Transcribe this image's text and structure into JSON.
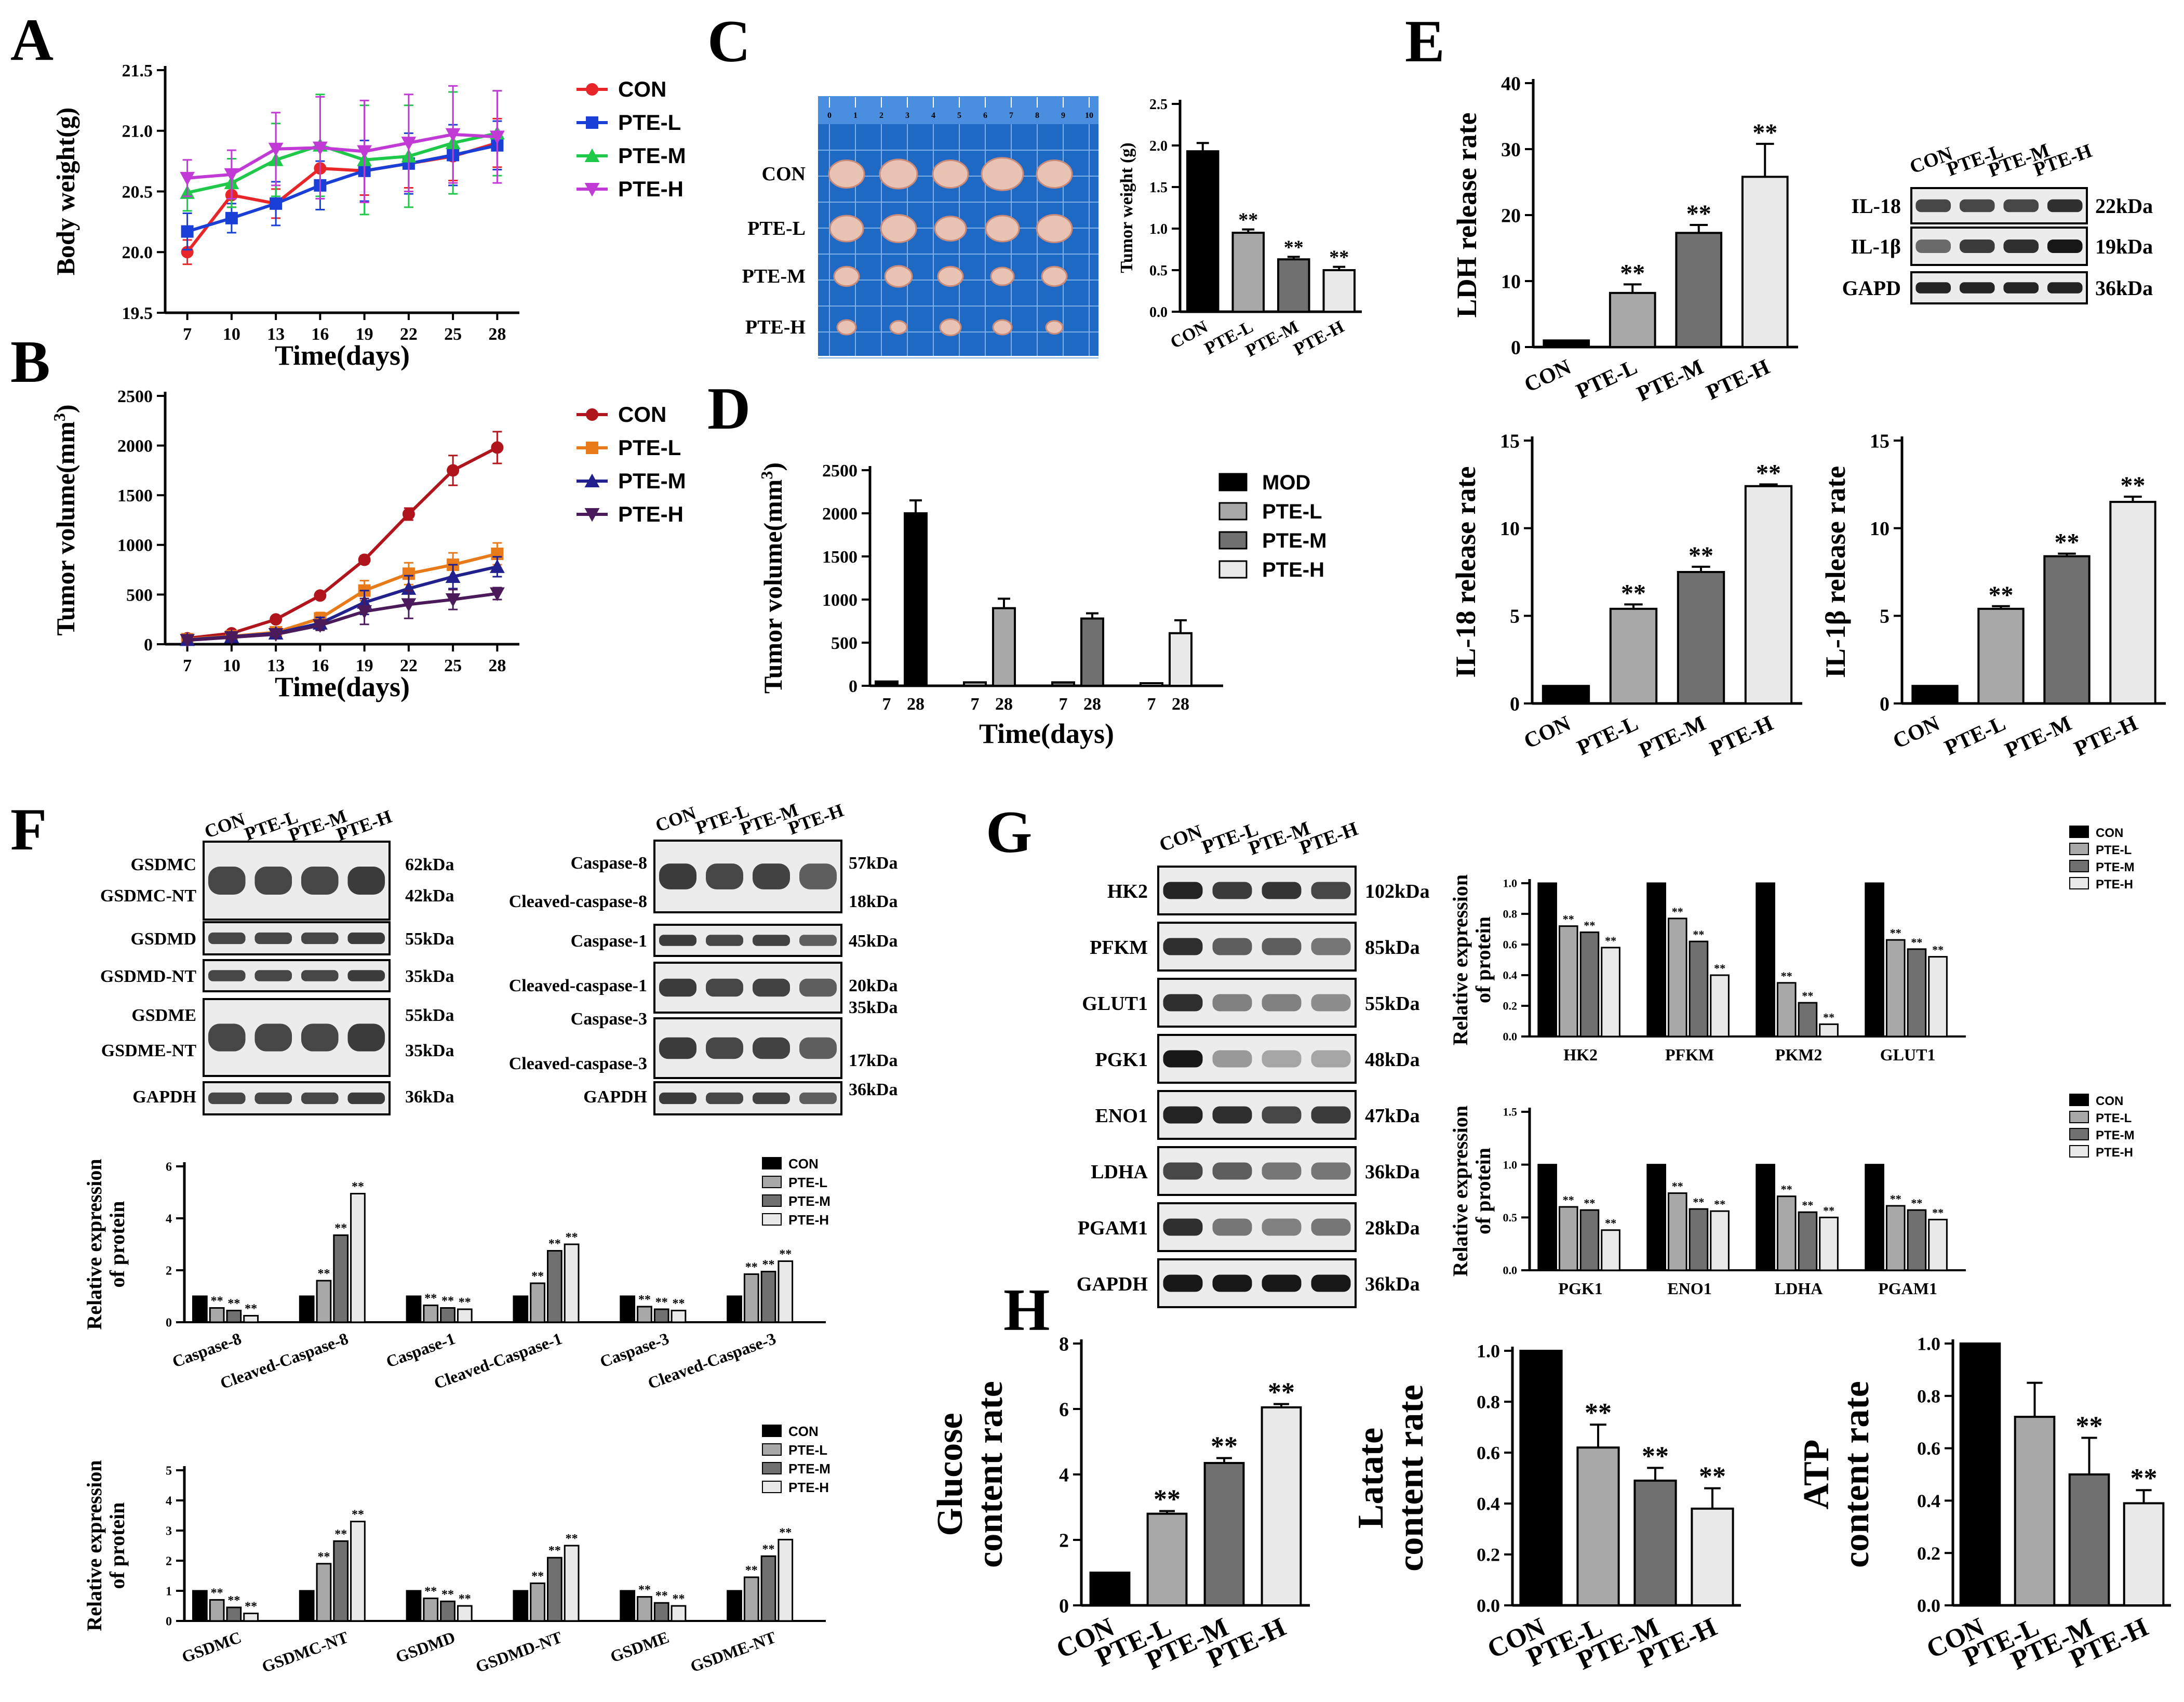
{
  "figure": {
    "panel_labels": [
      "A",
      "B",
      "C",
      "D",
      "E",
      "F",
      "G",
      "H"
    ]
  },
  "chart_data": [
    {
      "id": "A",
      "type": "line",
      "ylabel": "Body weight(g)",
      "xlabel": "Time(days)",
      "x": [
        7,
        10,
        13,
        16,
        19,
        22,
        25,
        28
      ],
      "ylim": [
        19.5,
        21.5
      ],
      "yticks": [
        19.5,
        20.0,
        20.5,
        21.0,
        21.5
      ],
      "series": [
        {
          "name": "CON",
          "color": "#e8262a",
          "marker": "circle",
          "values": [
            20.0,
            20.47,
            20.4,
            20.69,
            20.67,
            20.73,
            20.79,
            20.9
          ],
          "err": [
            0.1,
            0.1,
            0.12,
            0.15,
            0.2,
            0.2,
            0.2,
            0.2
          ]
        },
        {
          "name": "PTE-L",
          "color": "#1a3fd6",
          "marker": "square",
          "values": [
            20.17,
            20.28,
            20.4,
            20.55,
            20.67,
            20.73,
            20.8,
            20.88
          ],
          "err": [
            0.15,
            0.12,
            0.18,
            0.2,
            0.25,
            0.25,
            0.25,
            0.2
          ]
        },
        {
          "name": "PTE-M",
          "color": "#1ec94a",
          "marker": "triangle",
          "values": [
            20.49,
            20.57,
            20.76,
            20.88,
            20.76,
            20.79,
            20.9,
            20.98
          ],
          "err": [
            0.15,
            0.2,
            0.3,
            0.42,
            0.45,
            0.42,
            0.42,
            0.35
          ]
        },
        {
          "name": "PTE-H",
          "color": "#c23ad6",
          "marker": "tri-down",
          "values": [
            20.61,
            20.64,
            20.85,
            20.86,
            20.83,
            20.9,
            20.97,
            20.95
          ],
          "err": [
            0.15,
            0.2,
            0.3,
            0.42,
            0.42,
            0.4,
            0.4,
            0.38
          ]
        }
      ]
    },
    {
      "id": "B",
      "type": "line",
      "ylabel": "Tumor volume(mm",
      "ylabel_sup": "3",
      "ylabel_end": ")",
      "xlabel": "Time(days)",
      "x": [
        7,
        10,
        13,
        16,
        19,
        22,
        25,
        28
      ],
      "ylim": [
        0,
        2500
      ],
      "yticks": [
        0,
        500,
        1000,
        1500,
        2000,
        2500
      ],
      "series": [
        {
          "name": "CON",
          "color": "#b0141c",
          "marker": "circle",
          "values": [
            60,
            110,
            250,
            490,
            850,
            1310,
            1750,
            1980
          ],
          "err": [
            10,
            15,
            20,
            25,
            40,
            60,
            150,
            160
          ]
        },
        {
          "name": "PTE-L",
          "color": "#e87a1a",
          "marker": "square",
          "values": [
            50,
            80,
            120,
            260,
            540,
            710,
            800,
            910
          ],
          "err": [
            10,
            15,
            30,
            60,
            100,
            110,
            120,
            110
          ]
        },
        {
          "name": "PTE-M",
          "color": "#21208c",
          "marker": "triangle",
          "values": [
            45,
            75,
            110,
            210,
            420,
            560,
            680,
            780
          ],
          "err": [
            10,
            15,
            30,
            60,
            120,
            130,
            120,
            100
          ]
        },
        {
          "name": "PTE-H",
          "color": "#4b1a5a",
          "marker": "tri-down",
          "values": [
            40,
            70,
            100,
            190,
            330,
            400,
            450,
            510
          ],
          "err": [
            10,
            15,
            25,
            50,
            130,
            140,
            100,
            60
          ]
        }
      ]
    },
    {
      "id": "C-bar",
      "type": "bar",
      "ylabel": "Tumor weight (g)",
      "categories": [
        "CON",
        "PTE-L",
        "PTE-M",
        "PTE-H"
      ],
      "values": [
        1.93,
        0.95,
        0.63,
        0.5
      ],
      "err": [
        0.1,
        0.04,
        0.03,
        0.04
      ],
      "sig": [
        "",
        "**",
        "**",
        "**"
      ],
      "ylim": [
        0,
        2.5
      ],
      "yticks": [
        "0.0",
        "0.5",
        "1.0",
        "1.5",
        "2.0",
        "2.5"
      ]
    },
    {
      "id": "D",
      "type": "bar",
      "ylabel": "Tumor volume(mm",
      "ylabel_sup": "3",
      "ylabel_end": ")",
      "xlabel": "Time(days)",
      "groups": [
        "MOD",
        "PTE-L",
        "PTE-M",
        "PTE-H"
      ],
      "xticks": [
        "7",
        "28",
        "7",
        "28",
        "7",
        "28",
        "7",
        "28"
      ],
      "values": [
        50,
        2000,
        40,
        900,
        40,
        780,
        30,
        610
      ],
      "err": [
        0,
        150,
        0,
        110,
        0,
        60,
        0,
        150
      ],
      "ylim": [
        0,
        2500
      ],
      "yticks": [
        0,
        500,
        1000,
        1500,
        2000,
        2500
      ]
    },
    {
      "id": "E-LDH",
      "type": "bar",
      "ylabel": "LDH release rate",
      "categories": [
        "CON",
        "PTE-L",
        "PTE-M",
        "PTE-H"
      ],
      "values": [
        1,
        8.2,
        17.3,
        25.8
      ],
      "err": [
        0,
        1.3,
        1.2,
        5
      ],
      "sig": [
        "",
        "**",
        "**",
        "**"
      ],
      "ylim": [
        0,
        40
      ],
      "yticks": [
        0,
        10,
        20,
        30,
        40
      ]
    },
    {
      "id": "E-IL18",
      "type": "bar",
      "ylabel": "IL-18 release rate",
      "categories": [
        "CON",
        "PTE-L",
        "PTE-M",
        "PTE-H"
      ],
      "values": [
        1,
        5.4,
        7.5,
        12.4
      ],
      "err": [
        0,
        0.25,
        0.3,
        0.1
      ],
      "sig": [
        "",
        "**",
        "**",
        "**"
      ],
      "ylim": [
        0,
        15
      ],
      "yticks": [
        0,
        5,
        10,
        15
      ]
    },
    {
      "id": "E-IL1b",
      "type": "bar",
      "ylabel": "IL-1β release rate",
      "categories": [
        "CON",
        "PTE-L",
        "PTE-M",
        "PTE-H"
      ],
      "values": [
        1,
        5.4,
        8.4,
        11.5
      ],
      "err": [
        0,
        0.15,
        0.15,
        0.3
      ],
      "sig": [
        "",
        "**",
        "**",
        "**"
      ],
      "ylim": [
        0,
        15
      ],
      "yticks": [
        0,
        5,
        10,
        15
      ]
    },
    {
      "id": "F-caspase",
      "type": "bar",
      "ylabel": "Relative expression",
      "ylabel2": "of protein",
      "legend": [
        "CON",
        "PTE-L",
        "PTE-M",
        "PTE-H"
      ],
      "categories": [
        "Caspase-8",
        "Cleaved-Caspase-8",
        "Caspase-1",
        "Cleaved-Caspase-1",
        "Caspase-3",
        "Cleaved-Caspase-3"
      ],
      "series_values": [
        [
          1,
          0.55,
          0.45,
          0.25
        ],
        [
          1,
          1.6,
          3.35,
          4.95
        ],
        [
          1,
          0.65,
          0.55,
          0.5
        ],
        [
          1,
          1.5,
          2.75,
          3.0
        ],
        [
          1,
          0.6,
          0.5,
          0.45
        ],
        [
          1,
          1.85,
          1.95,
          2.35
        ]
      ],
      "ylim": [
        0,
        6
      ],
      "yticks": [
        0,
        2,
        4,
        6
      ]
    },
    {
      "id": "F-gsdm",
      "type": "bar",
      "ylabel": "Relative expression",
      "ylabel2": "of protein",
      "legend": [
        "CON",
        "PTE-L",
        "PTE-M",
        "PTE-H"
      ],
      "categories": [
        "GSDMC",
        "GSDMC-NT",
        "GSDMD",
        "GSDMD-NT",
        "GSDME",
        "GSDME-NT"
      ],
      "series_values": [
        [
          1,
          0.7,
          0.45,
          0.25
        ],
        [
          1,
          1.9,
          2.65,
          3.3
        ],
        [
          1,
          0.75,
          0.65,
          0.5
        ],
        [
          1,
          1.25,
          2.1,
          2.5
        ],
        [
          1,
          0.8,
          0.6,
          0.5
        ],
        [
          1,
          1.45,
          2.15,
          2.7
        ]
      ],
      "ylim": [
        0,
        5
      ],
      "yticks": [
        0,
        1,
        2,
        3,
        4,
        5
      ]
    },
    {
      "id": "G-1",
      "type": "bar",
      "ylabel": "Relative expression",
      "ylabel2": "of protein",
      "legend": [
        "CON",
        "PTE-L",
        "PTE-M",
        "PTE-H"
      ],
      "categories": [
        "HK2",
        "PFKM",
        "PKM2",
        "GLUT1"
      ],
      "series_values": [
        [
          1,
          0.72,
          0.68,
          0.58
        ],
        [
          1,
          0.77,
          0.62,
          0.4
        ],
        [
          1,
          0.35,
          0.22,
          0.08
        ],
        [
          1,
          0.63,
          0.57,
          0.52
        ]
      ],
      "ylim": [
        0,
        1.0
      ],
      "yticks": [
        "0.0",
        "0.2",
        "0.4",
        "0.6",
        "0.8",
        "1.0"
      ]
    },
    {
      "id": "G-2",
      "type": "bar",
      "ylabel": "Relative expression",
      "ylabel2": "of protein",
      "legend": [
        "CON",
        "PTE-L",
        "PTE-M",
        "PTE-H"
      ],
      "categories": [
        "PGK1",
        "ENO1",
        "LDHA",
        "PGAM1"
      ],
      "series_values": [
        [
          1,
          0.6,
          0.57,
          0.38
        ],
        [
          1,
          0.73,
          0.58,
          0.56
        ],
        [
          1,
          0.7,
          0.55,
          0.5
        ],
        [
          1,
          0.61,
          0.57,
          0.48
        ]
      ],
      "ylim": [
        0,
        1.5
      ],
      "yticks": [
        "0.0",
        "0.5",
        "1.0",
        "1.5"
      ]
    },
    {
      "id": "H-glucose",
      "type": "bar",
      "ylabel": "Glucose",
      "ylabel2": "content rate",
      "categories": [
        "CON",
        "PTE-L",
        "PTE-M",
        "PTE-H"
      ],
      "values": [
        1,
        2.8,
        4.35,
        6.05
      ],
      "err": [
        0,
        0.08,
        0.15,
        0.1
      ],
      "sig": [
        "",
        "**",
        "**",
        "**"
      ],
      "ylim": [
        0,
        8
      ],
      "yticks": [
        0,
        2,
        4,
        6,
        8
      ]
    },
    {
      "id": "H-lactate",
      "type": "bar",
      "ylabel": "Latate",
      "ylabel2": "content rate",
      "categories": [
        "CON",
        "PTE-L",
        "PTE-M",
        "PTE-H"
      ],
      "values": [
        1.0,
        0.62,
        0.49,
        0.38
      ],
      "err": [
        0,
        0.09,
        0.05,
        0.08
      ],
      "sig": [
        "",
        "**",
        "**",
        "**"
      ],
      "ylim": [
        0,
        1.0
      ],
      "yticks": [
        "0.0",
        "0.2",
        "0.4",
        "0.6",
        "0.8",
        "1.0"
      ]
    },
    {
      "id": "H-atp",
      "type": "bar",
      "ylabel": "ATP",
      "ylabel2": "content rate",
      "categories": [
        "CON",
        "PTE-L",
        "PTE-M",
        "PTE-H"
      ],
      "values": [
        1.0,
        0.72,
        0.5,
        0.39
      ],
      "err": [
        0,
        0.13,
        0.14,
        0.05
      ],
      "sig": [
        "",
        "",
        "**",
        "**"
      ],
      "ylim": [
        0,
        1.0
      ],
      "yticks": [
        "0.0",
        "0.2",
        "0.4",
        "0.6",
        "0.8",
        "1.0"
      ]
    }
  ],
  "panelC": {
    "row_labels": [
      "CON",
      "PTE-L",
      "PTE-M",
      "PTE-H"
    ],
    "ruler": [
      "0",
      "1",
      "2",
      "3",
      "4",
      "5",
      "6",
      "7",
      "8",
      "9",
      "10"
    ]
  },
  "panelE_blot": {
    "lanes": [
      "CON",
      "PTE-L",
      "PTE-M",
      "PTE-H"
    ],
    "rows": [
      {
        "name": "IL-18",
        "size": "22kDa"
      },
      {
        "name": "IL-1β",
        "size": "19kDa"
      },
      {
        "name": "GAPD",
        "size": "36kDa"
      }
    ]
  },
  "panelF_blot1": {
    "lanes": [
      "CON",
      "PTE-L",
      "PTE-M",
      "PTE-H"
    ],
    "rows": [
      {
        "name": "GSDMC",
        "size": "62kDa"
      },
      {
        "name": "GSDMC-NT",
        "size": "42kDa"
      },
      {
        "name": "GSDMD",
        "size": "55kDa"
      },
      {
        "name": "GSDMD-NT",
        "size": "35kDa"
      },
      {
        "name": "GSDME",
        "size": "55kDa"
      },
      {
        "name": "GSDME-NT",
        "size": "35kDa"
      },
      {
        "name": "GAPDH",
        "size": "36kDa"
      }
    ]
  },
  "panelF_blot2": {
    "lanes": [
      "CON",
      "PTE-L",
      "PTE-M",
      "PTE-H"
    ],
    "rows": [
      {
        "name": "Caspase-8",
        "size": "57kDa"
      },
      {
        "name": "Cleaved-caspase-8",
        "size": "18kDa"
      },
      {
        "name": "Caspase-1",
        "size": "45kDa"
      },
      {
        "name": "Cleaved-caspase-1",
        "size": "20kDa"
      },
      {
        "name": "Caspase-3",
        "size": "35kDa"
      },
      {
        "name": "Cleaved-caspase-3",
        "size": "17kDa"
      },
      {
        "name": "GAPDH",
        "size": "36kDa"
      }
    ]
  },
  "panelG_blot": {
    "lanes": [
      "CON",
      "PTE-L",
      "PTE-M",
      "PTE-H"
    ],
    "rows": [
      {
        "name": "HK2",
        "size": "102kDa"
      },
      {
        "name": "PFKM",
        "size": "85kDa"
      },
      {
        "name": "GLUT1",
        "size": "55kDa"
      },
      {
        "name": "PGK1",
        "size": "48kDa"
      },
      {
        "name": "ENO1",
        "size": "47kDa"
      },
      {
        "name": "LDHA",
        "size": "36kDa"
      },
      {
        "name": "PGAM1",
        "size": "28kDa"
      },
      {
        "name": "GAPDH",
        "size": "36kDa"
      }
    ]
  },
  "sig_mark": "**"
}
